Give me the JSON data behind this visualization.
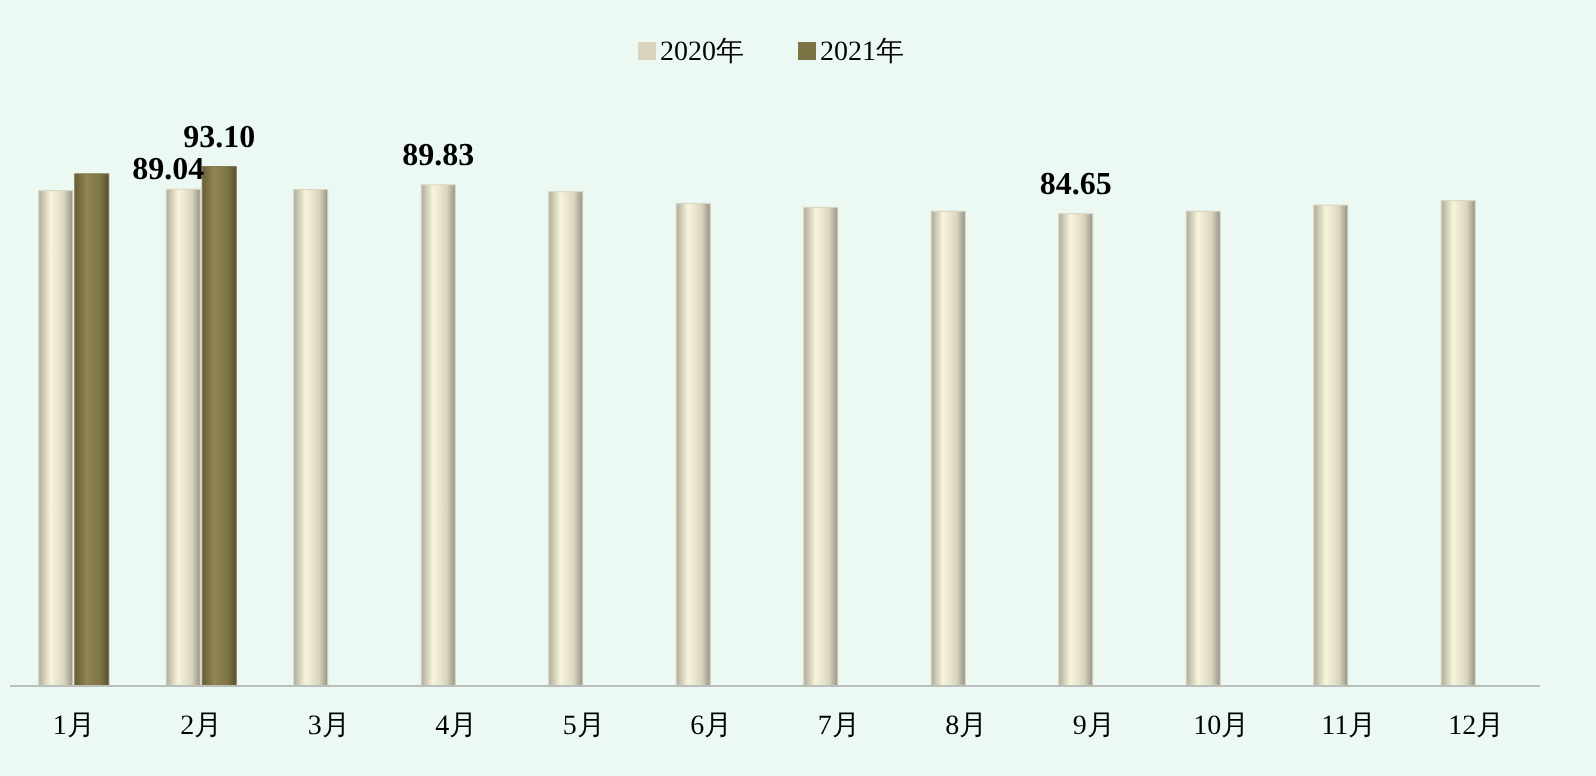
{
  "chart_data": {
    "type": "bar",
    "categories": [
      "1月",
      "2月",
      "3月",
      "4月",
      "5月",
      "6月",
      "7月",
      "8月",
      "9月",
      "10月",
      "11月",
      "12月"
    ],
    "tick_labels": "x",
    "legend": "top",
    "series": [
      {
        "name": "2020年",
        "color": "#d8d4bf",
        "values": [
          88.8,
          89.04,
          89.0,
          89.83,
          88.6,
          86.5,
          85.8,
          85.1,
          84.65,
          85.1,
          86.2,
          87.0
        ],
        "value_labels": [
          null,
          "89.04",
          null,
          "89.83",
          null,
          null,
          null,
          null,
          "84.65",
          null,
          null,
          null
        ]
      },
      {
        "name": "2021年",
        "color": "#7d7445",
        "values": [
          91.8,
          93.1,
          null,
          null,
          null,
          null,
          null,
          null,
          null,
          null,
          null,
          null
        ],
        "value_labels": [
          null,
          "93.10",
          null,
          null,
          null,
          null,
          null,
          null,
          null,
          null,
          null,
          null
        ]
      }
    ]
  }
}
